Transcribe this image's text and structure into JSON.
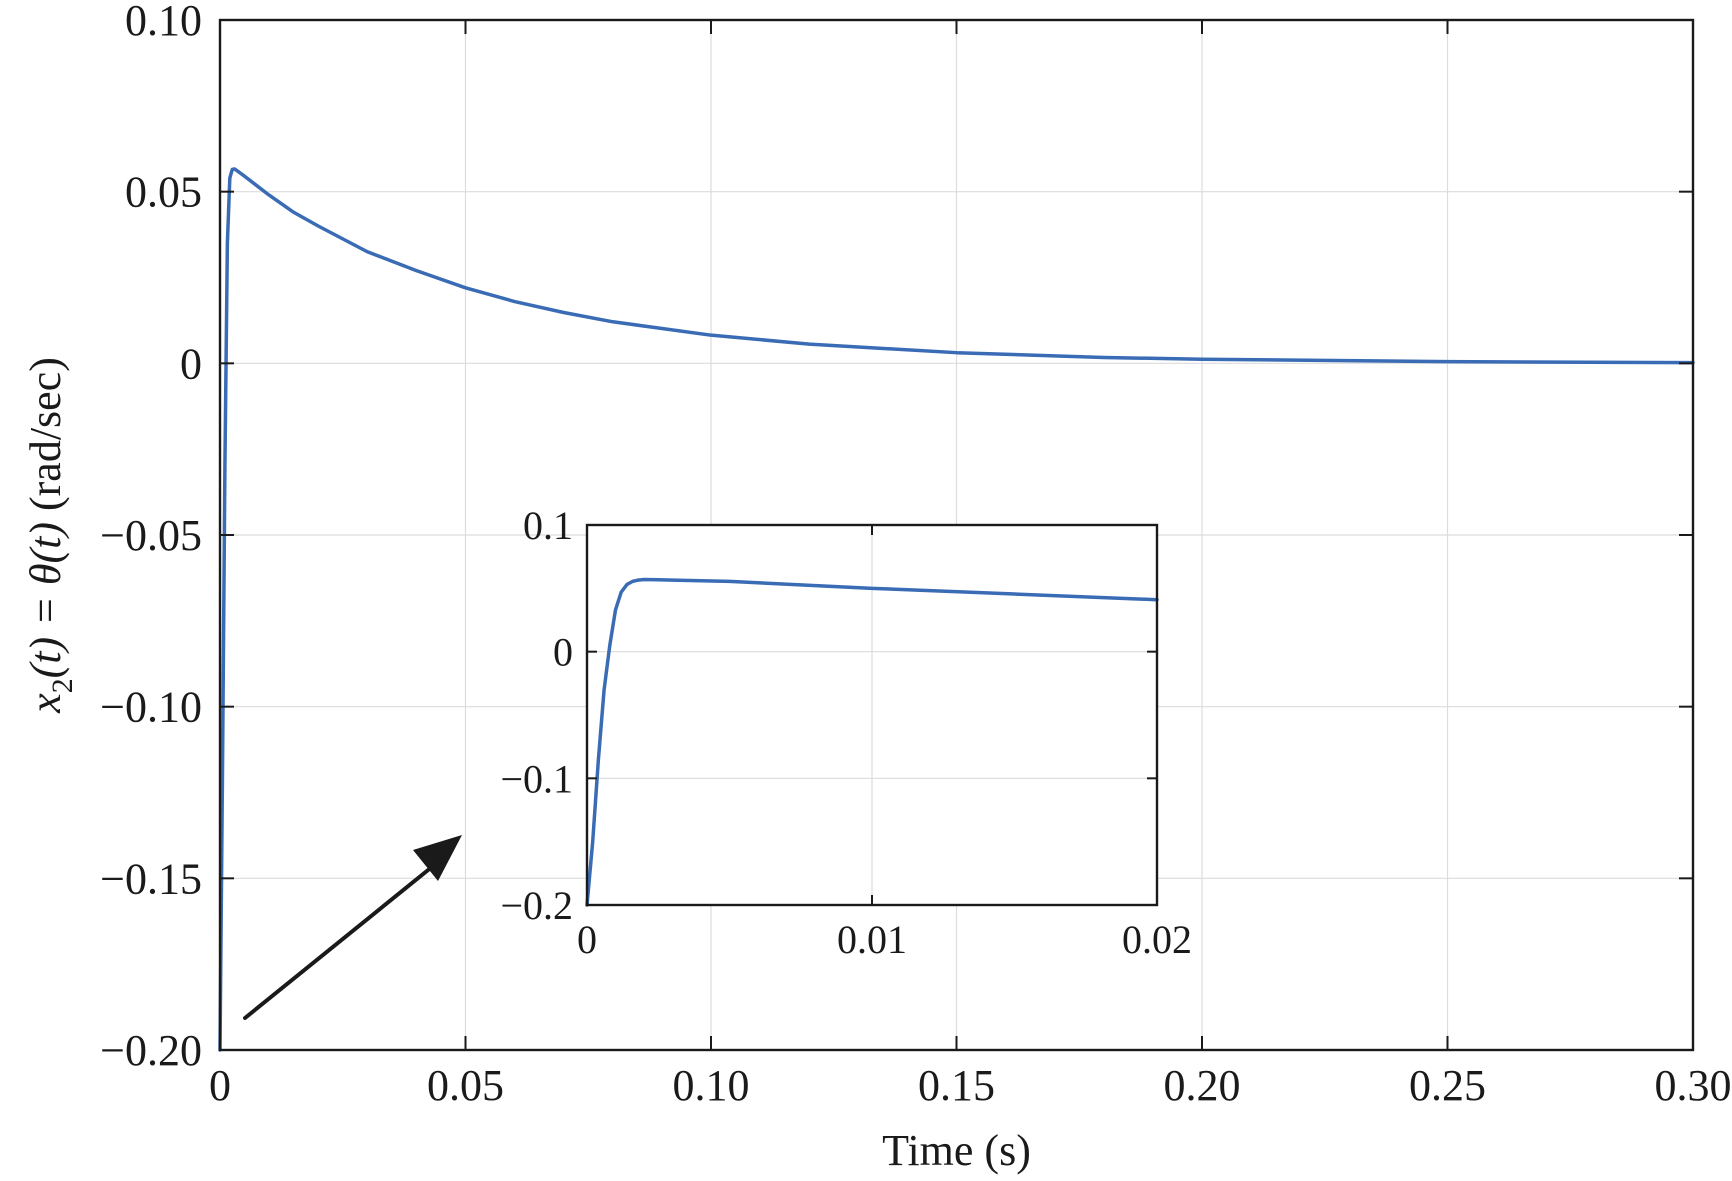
{
  "chart_data": [
    {
      "type": "line",
      "title": "",
      "xlabel": "Time (s)",
      "ylabel": "x2(t) = θ̇(t) (rad/sec)",
      "ylabel_parts": {
        "x": "x",
        "sub2": "2",
        "t1": "(t) = ",
        "theta": "θ",
        "t2": "(t)",
        "units": " (rad/sec)"
      },
      "xlim": [
        0,
        0.3
      ],
      "ylim": [
        -0.2,
        0.1
      ],
      "xticks": [
        0,
        0.05,
        0.1,
        0.15,
        0.2,
        0.25,
        0.3
      ],
      "xtick_labels": [
        "0",
        "0.05",
        "0.10",
        "0.15",
        "0.20",
        "0.25",
        "0.30"
      ],
      "yticks": [
        -0.2,
        -0.15,
        -0.1,
        -0.05,
        0,
        0.05,
        0.1
      ],
      "ytick_labels": [
        "−0.20",
        "−0.15",
        "−0.10",
        "−0.05",
        "0",
        "0.05",
        "0.10"
      ],
      "grid": true,
      "series": [
        {
          "color": "#3a6bb5",
          "x": [
            0,
            0.0005,
            0.001,
            0.0015,
            0.002,
            0.0025,
            0.003,
            0.005,
            0.01,
            0.015,
            0.02,
            0.03,
            0.04,
            0.05,
            0.06,
            0.07,
            0.08,
            0.1,
            0.12,
            0.15,
            0.18,
            0.2,
            0.25,
            0.3
          ],
          "y": [
            -0.2,
            -0.12,
            -0.03,
            0.035,
            0.054,
            0.0565,
            0.0566,
            0.0545,
            0.049,
            0.044,
            0.04,
            0.0325,
            0.027,
            0.022,
            0.018,
            0.0148,
            0.0121,
            0.0082,
            0.0056,
            0.0031,
            0.0017,
            0.0012,
            0.0005,
            0.0002
          ]
        }
      ]
    },
    {
      "type": "line",
      "inset": true,
      "title": "",
      "xlabel": "",
      "ylabel": "",
      "xlim": [
        0,
        0.02
      ],
      "ylim": [
        -0.2,
        0.1
      ],
      "xticks": [
        0,
        0.01,
        0.02
      ],
      "xtick_labels": [
        "0",
        "0.01",
        "0.02"
      ],
      "yticks": [
        -0.2,
        -0.1,
        0,
        0.1
      ],
      "ytick_labels": [
        "−0.2",
        "−0.1",
        "0",
        "0.1"
      ],
      "grid": true,
      "series": [
        {
          "color": "#3a6bb5",
          "x": [
            0,
            0.0002,
            0.0004,
            0.0006,
            0.0008,
            0.001,
            0.0012,
            0.0014,
            0.0016,
            0.0018,
            0.002,
            0.0025,
            0.003,
            0.005,
            0.01,
            0.015,
            0.02
          ],
          "y": [
            -0.2,
            -0.15,
            -0.085,
            -0.03,
            0.005,
            0.033,
            0.047,
            0.053,
            0.0555,
            0.0565,
            0.057,
            0.0568,
            0.0565,
            0.0555,
            0.05,
            0.0455,
            0.041
          ]
        }
      ]
    }
  ],
  "annotation": {
    "type": "arrow",
    "color": "#1a1a1a"
  },
  "colors": {
    "axis": "#1a1a1a",
    "grid": "#dcdcdc",
    "line": "#3a6bb5"
  }
}
